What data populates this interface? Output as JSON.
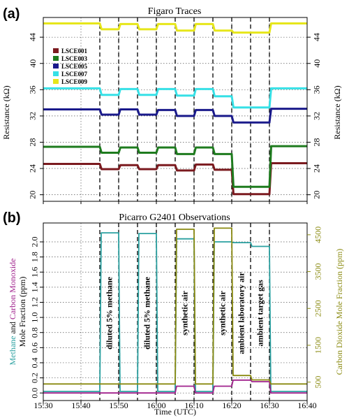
{
  "chart_data": [
    {
      "type": "line",
      "panel_label": "(a)",
      "title": "Figaro Traces",
      "xlabel": "",
      "ylabel": "Resistance (kΩ)",
      "ylabel_right": "Resistance (kΩ)",
      "xlim": [
        "15:30",
        "16:40"
      ],
      "ylim": [
        19,
        47
      ],
      "yticks": [
        20,
        24,
        28,
        32,
        36,
        40,
        44
      ],
      "grid": "dotted",
      "legend_position": "top-left",
      "event_lines": [
        "15:45",
        "15:50",
        "15:55",
        "16:00",
        "16:05",
        "16:10",
        "16:15",
        "16:20",
        "16:25",
        "16:30"
      ],
      "series": [
        {
          "name": "LSCE001",
          "color": "#7b1a1f",
          "baseline": 24.7,
          "steps": [
            [
              "15:30",
              24.7
            ],
            [
              "15:45",
              23.9
            ],
            [
              "15:50",
              24.5
            ],
            [
              "15:55",
              23.9
            ],
            [
              "16:00",
              24.5
            ],
            [
              "16:05",
              23.7
            ],
            [
              "16:10",
              24.6
            ],
            [
              "16:15",
              23.8
            ],
            [
              "16:20",
              20.1
            ],
            [
              "16:25",
              20.1
            ],
            [
              "16:30",
              24.8
            ]
          ]
        },
        {
          "name": "LSCE003",
          "color": "#1e7b1e",
          "baseline": 27.3,
          "steps": [
            [
              "15:30",
              27.3
            ],
            [
              "15:45",
              26.4
            ],
            [
              "15:50",
              27.2
            ],
            [
              "15:55",
              26.4
            ],
            [
              "16:00",
              27.2
            ],
            [
              "16:05",
              26.2
            ],
            [
              "16:10",
              27.2
            ],
            [
              "16:15",
              26.2
            ],
            [
              "16:20",
              21.2
            ],
            [
              "16:25",
              21.2
            ],
            [
              "16:30",
              27.4
            ]
          ]
        },
        {
          "name": "LSCE005",
          "color": "#1a1a8b",
          "baseline": 33.0,
          "steps": [
            [
              "15:30",
              33.0
            ],
            [
              "15:45",
              32.2
            ],
            [
              "15:50",
              33.0
            ],
            [
              "15:55",
              32.2
            ],
            [
              "16:00",
              32.9
            ],
            [
              "16:05",
              32.0
            ],
            [
              "16:10",
              32.9
            ],
            [
              "16:15",
              32.0
            ],
            [
              "16:20",
              31.0
            ],
            [
              "16:25",
              31.0
            ],
            [
              "16:30",
              33.1
            ]
          ]
        },
        {
          "name": "LSCE007",
          "color": "#36e0e6",
          "baseline": 36.2,
          "steps": [
            [
              "15:30",
              36.2
            ],
            [
              "15:45",
              35.2
            ],
            [
              "15:50",
              36.1
            ],
            [
              "15:55",
              35.2
            ],
            [
              "16:00",
              36.1
            ],
            [
              "16:05",
              35.1
            ],
            [
              "16:10",
              36.1
            ],
            [
              "16:15",
              35.0
            ],
            [
              "16:20",
              33.3
            ],
            [
              "16:25",
              33.3
            ],
            [
              "16:30",
              36.2
            ]
          ]
        },
        {
          "name": "LSCE009",
          "color": "#e6e61a",
          "baseline": 46.1,
          "steps": [
            [
              "15:30",
              46.1
            ],
            [
              "15:45",
              45.2
            ],
            [
              "15:50",
              46.0
            ],
            [
              "15:55",
              45.2
            ],
            [
              "16:00",
              46.0
            ],
            [
              "16:05",
              45.0
            ],
            [
              "16:10",
              46.0
            ],
            [
              "16:15",
              45.0
            ],
            [
              "16:20",
              44.7
            ],
            [
              "16:25",
              44.7
            ],
            [
              "16:30",
              46.1
            ]
          ]
        }
      ]
    },
    {
      "type": "line",
      "panel_label": "(b)",
      "title": "Picarro G2401 Observations",
      "xlabel": "Time (UTC)",
      "ylabel_parts": [
        {
          "text": "Methane",
          "color": "#2aa0a0"
        },
        {
          "text": " and ",
          "color": "#111111"
        },
        {
          "text": "Carbon Monoxide",
          "color": "#a0208c"
        }
      ],
      "ylabel_line2": "Mole Fraction (ppm)",
      "ylabel_right": "Carbon Dioxide Mole Fraction (ppm)",
      "xlim": [
        "15:30",
        "16:40"
      ],
      "xticks": [
        "15:30",
        "15:40",
        "15:50",
        "16:00",
        "16:10",
        "16:20",
        "16:30",
        "16:40"
      ],
      "ylim": [
        -0.1,
        2.25
      ],
      "yticks": [
        0.0,
        0.2,
        0.4,
        0.6,
        0.8,
        1.0,
        1.2,
        1.4,
        1.6,
        1.8,
        2.0
      ],
      "ylim_right": [
        0,
        4820
      ],
      "yticks_right": [
        500,
        1500,
        2500,
        3500,
        4500
      ],
      "grid": "dotted",
      "event_lines": [
        "15:45",
        "15:50",
        "15:55",
        "16:00",
        "16:05",
        "16:10",
        "16:15",
        "16:20",
        "16:25",
        "16:30"
      ],
      "annotations": [
        {
          "text": "diluted 5% methane",
          "x": "15:47:30"
        },
        {
          "text": "diluted 5% methane",
          "x": "15:57:30"
        },
        {
          "text": "synthetic air",
          "x": "16:07:30"
        },
        {
          "text": "synthetic air",
          "x": "16:17:30"
        },
        {
          "text": "ambient laboratory air",
          "x": "16:22:30"
        },
        {
          "text": "ambient target gas",
          "x": "16:27:30"
        }
      ],
      "series": [
        {
          "name": "Methane",
          "color": "#2aa0a0",
          "axis": "left",
          "steps": [
            [
              "15:30",
              0.02
            ],
            [
              "15:45",
              2.12
            ],
            [
              "15:50",
              0.02
            ],
            [
              "15:55",
              2.11
            ],
            [
              "16:00",
              0.02
            ],
            [
              "16:05",
              2.04
            ],
            [
              "16:10",
              0.02
            ],
            [
              "16:15",
              2.0
            ],
            [
              "16:20",
              1.99
            ],
            [
              "16:25",
              1.94
            ],
            [
              "16:30",
              0.02
            ]
          ]
        },
        {
          "name": "Carbon Monoxide",
          "color": "#a0208c",
          "axis": "left",
          "steps": [
            [
              "15:30",
              0.0
            ],
            [
              "15:45",
              0.0
            ],
            [
              "15:50",
              0.0
            ],
            [
              "15:55",
              0.0
            ],
            [
              "16:00",
              0.0
            ],
            [
              "16:05",
              0.09
            ],
            [
              "16:10",
              0.0
            ],
            [
              "16:15",
              0.09
            ],
            [
              "16:20",
              0.17
            ],
            [
              "16:25",
              0.15
            ],
            [
              "16:30",
              0.0
            ]
          ]
        },
        {
          "name": "Carbon Dioxide",
          "color": "#8a8a10",
          "axis": "right",
          "steps": [
            [
              "15:30",
              450
            ],
            [
              "15:45",
              450
            ],
            [
              "15:50",
              450
            ],
            [
              "15:55",
              450
            ],
            [
              "16:00",
              450
            ],
            [
              "16:05",
              4650
            ],
            [
              "16:10",
              450
            ],
            [
              "16:15",
              4680
            ],
            [
              "16:20",
              680
            ],
            [
              "16:25",
              560
            ],
            [
              "16:30",
              450
            ]
          ]
        }
      ]
    }
  ]
}
